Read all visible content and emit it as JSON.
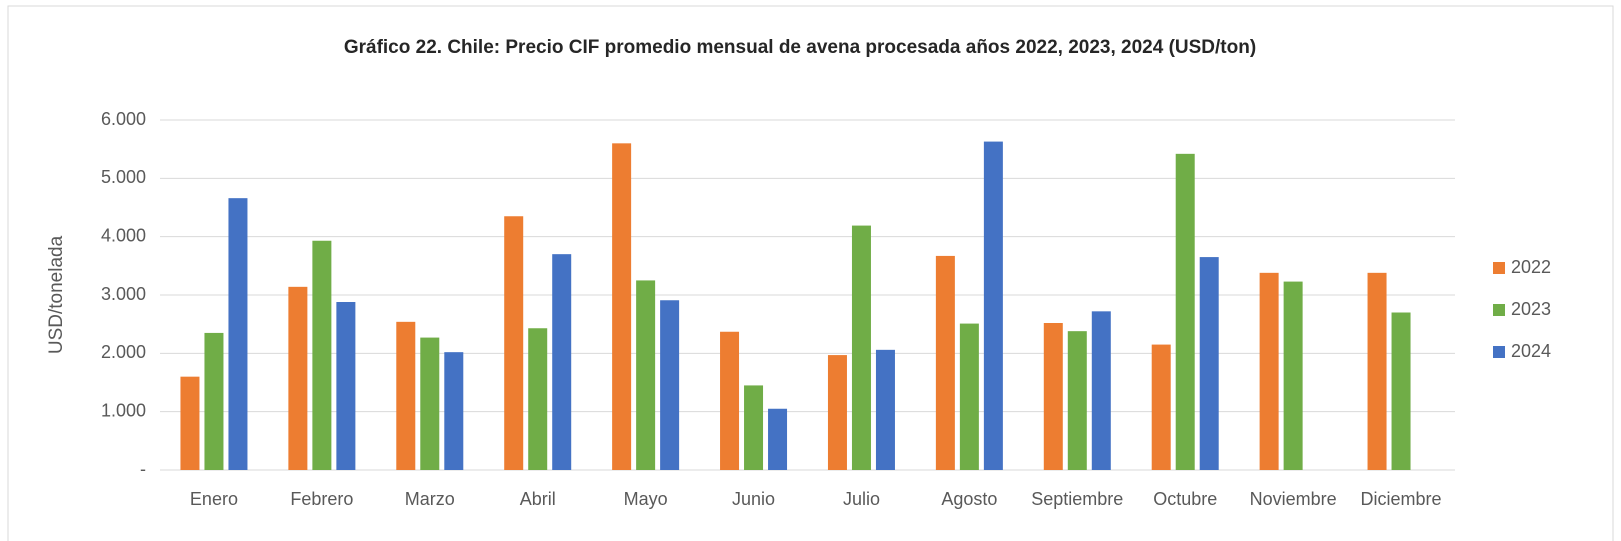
{
  "chart_data": {
    "type": "bar",
    "title": "Gráfico 22. Chile: Precio CIF promedio mensual de avena procesada años 2022, 2023, 2024 (USD/ton)",
    "y_label": "USD/tonelada",
    "categories": [
      "Enero",
      "Febrero",
      "Marzo",
      "Abril",
      "Mayo",
      "Junio",
      "Julio",
      "Agosto",
      "Septiembre",
      "Octubre",
      "Noviembre",
      "Diciembre"
    ],
    "series": [
      {
        "name": "2022",
        "color": "#ed7d31",
        "values": [
          1600,
          3140,
          2540,
          4350,
          5600,
          2370,
          1970,
          3670,
          2520,
          2150,
          3380,
          3380
        ]
      },
      {
        "name": "2023",
        "color": "#70ad47",
        "values": [
          2350,
          3930,
          2270,
          2430,
          3250,
          1450,
          4190,
          2510,
          2380,
          5420,
          3230,
          2700
        ]
      },
      {
        "name": "2024",
        "color": "#4472c4",
        "values": [
          4660,
          2880,
          2020,
          3700,
          2910,
          1050,
          2060,
          5630,
          2720,
          3650,
          null,
          null
        ]
      }
    ],
    "ylim": [
      0,
      6000
    ],
    "yticks": [
      {
        "value": 0,
        "label": "-"
      },
      {
        "value": 1000,
        "label": "1.000"
      },
      {
        "value": 2000,
        "label": "2.000"
      },
      {
        "value": 3000,
        "label": "3.000"
      },
      {
        "value": 4000,
        "label": "4.000"
      },
      {
        "value": 5000,
        "label": "5.000"
      },
      {
        "value": 6000,
        "label": "6.000"
      }
    ],
    "grid": true,
    "legend": "right"
  }
}
